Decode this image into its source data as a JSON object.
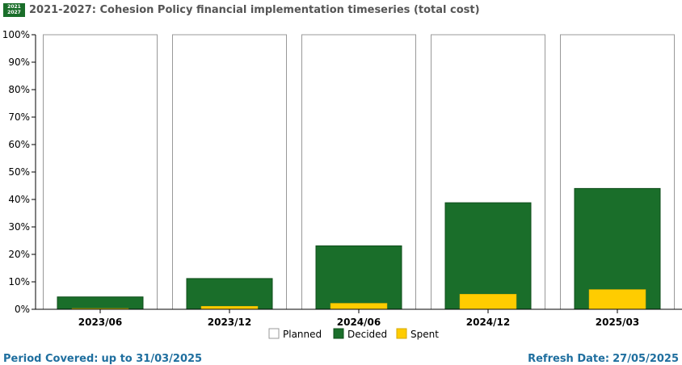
{
  "header": {
    "badge_top": "2021",
    "badge_bottom": "2027",
    "title": "2021-2027: Cohesion Policy financial implementation timeseries (total cost)"
  },
  "footer": {
    "period_label": "Period Covered:",
    "period_value": "up to 31/03/2025",
    "refresh_label": "Refresh Date:",
    "refresh_value": "27/05/2025"
  },
  "colors": {
    "planned": "#ffffff",
    "decided": "#1a6e2a",
    "spent": "#ffcc00",
    "title": "#555555",
    "footer": "#1f6f9f"
  },
  "chart_data": {
    "type": "bar",
    "title": "2021-2027: Cohesion Policy financial implementation timeseries (total cost)",
    "xlabel": "",
    "ylabel": "",
    "ylim": [
      0,
      100
    ],
    "y_ticks": [
      "0%",
      "10%",
      "20%",
      "30%",
      "40%",
      "50%",
      "60%",
      "70%",
      "80%",
      "90%",
      "100%"
    ],
    "categories": [
      "2023/06",
      "2023/12",
      "2024/06",
      "2024/12",
      "2025/03"
    ],
    "series": [
      {
        "name": "Planned",
        "values": [
          100,
          100,
          100,
          100,
          100
        ]
      },
      {
        "name": "Decided",
        "values": [
          4.5,
          11.2,
          23.1,
          38.8,
          44.0
        ]
      },
      {
        "name": "Spent",
        "values": [
          0.3,
          1.1,
          2.2,
          5.5,
          7.2
        ]
      }
    ],
    "legend": [
      "Planned",
      "Decided",
      "Spent"
    ],
    "legend_position": "bottom-center",
    "grid": false
  }
}
